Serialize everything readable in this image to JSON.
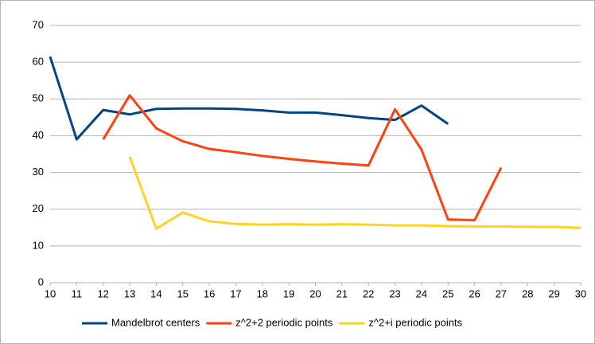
{
  "chart_data": {
    "type": "line",
    "x": [
      10,
      11,
      12,
      13,
      14,
      15,
      16,
      17,
      18,
      19,
      20,
      21,
      22,
      23,
      24,
      25,
      26,
      27,
      28,
      29,
      30
    ],
    "xlim": [
      10,
      30
    ],
    "xticks": [
      10,
      11,
      12,
      13,
      14,
      15,
      16,
      17,
      18,
      19,
      20,
      21,
      22,
      23,
      24,
      25,
      26,
      27,
      28,
      29,
      30
    ],
    "ylim": [
      0,
      70
    ],
    "yticks": [
      0,
      10,
      20,
      30,
      40,
      50,
      60,
      70
    ],
    "grid": true,
    "legend": "bottom",
    "series": [
      {
        "name": "Mandelbrot centers",
        "color": "#004586",
        "values": [
          61.5,
          39,
          47,
          45.8,
          47.3,
          47.4,
          47.4,
          47.3,
          46.9,
          46.3,
          46.3,
          45.6,
          44.8,
          44.3,
          48.2,
          43.2,
          null,
          null,
          null,
          null,
          null
        ]
      },
      {
        "name": "z^2+2 periodic points",
        "color": "#ff420e",
        "values": [
          null,
          null,
          39,
          51,
          42,
          38.5,
          36.4,
          35.5,
          34.5,
          33.7,
          33,
          32.4,
          31.9,
          47.2,
          36.2,
          17.2,
          17,
          31.3,
          null,
          null,
          null
        ]
      },
      {
        "name": "z^2+i periodic points",
        "color": "#ffd320",
        "values": [
          null,
          null,
          null,
          34.3,
          14.7,
          19.1,
          16.7,
          16,
          15.8,
          15.9,
          15.8,
          15.9,
          15.8,
          15.6,
          15.6,
          15.4,
          15.3,
          15.3,
          15.2,
          15.2,
          14.9
        ]
      }
    ]
  }
}
